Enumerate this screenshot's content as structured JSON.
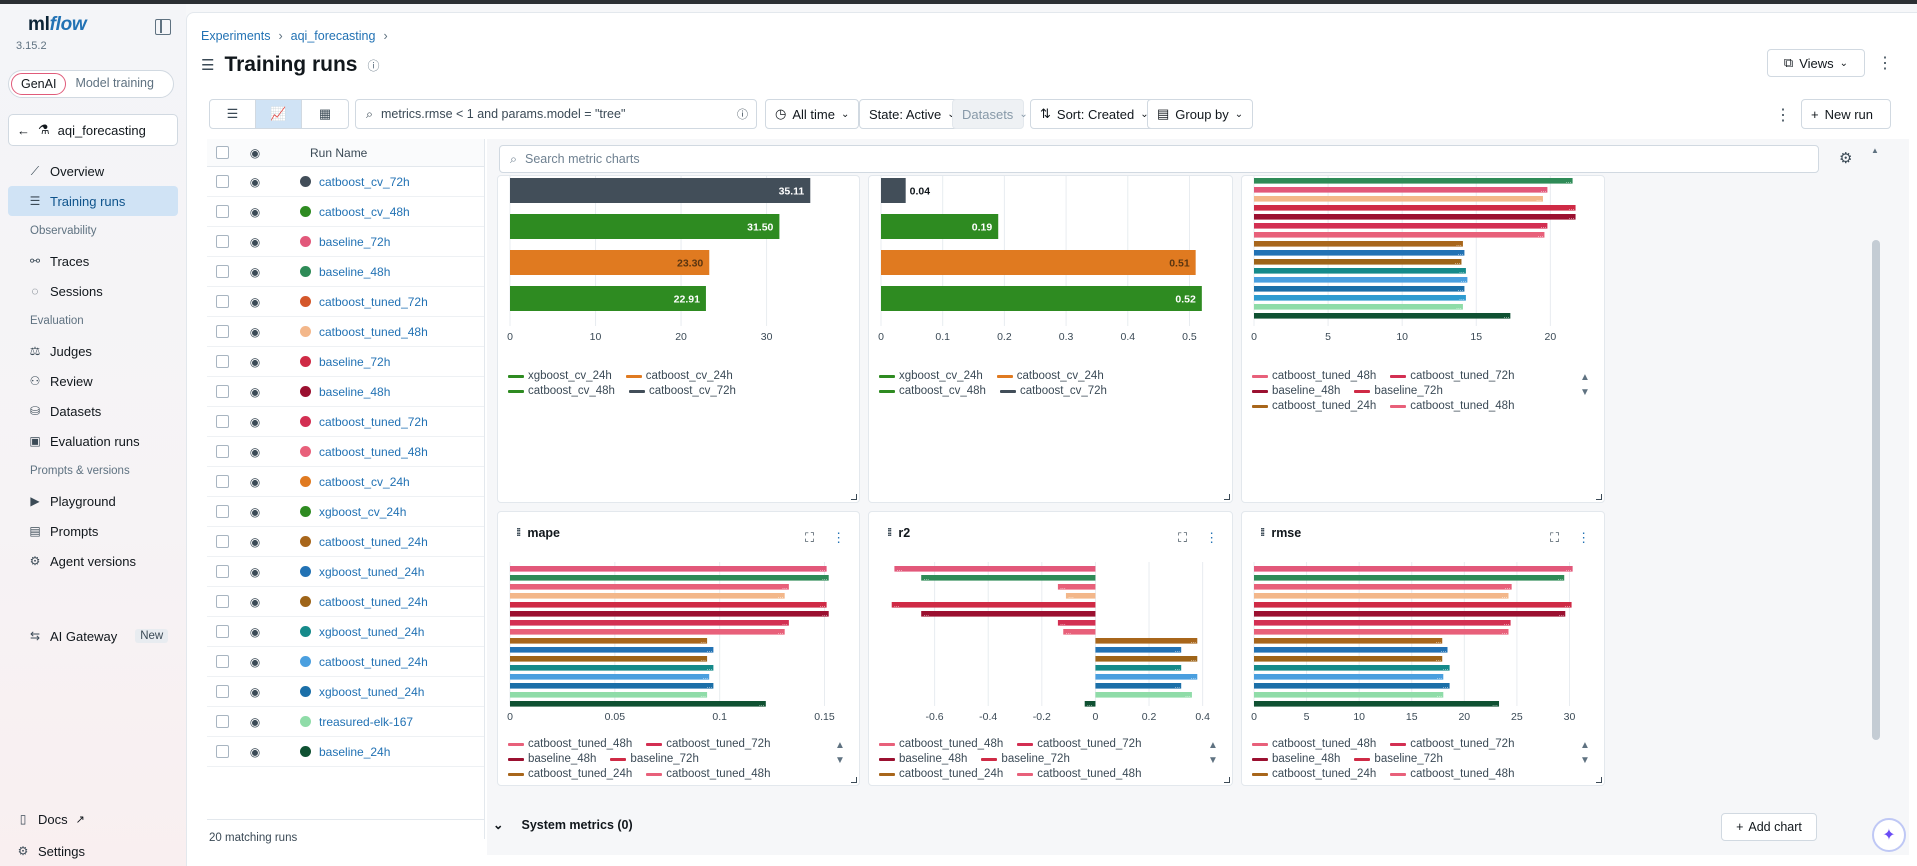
{
  "app": {
    "name": "mlflow",
    "version": "3.15.2"
  },
  "sidebar": {
    "modes": [
      "GenAI",
      "Model training"
    ],
    "experiment": "aqi_forecasting",
    "items": [
      {
        "label": "Overview",
        "icon": "chart-line-icon"
      },
      {
        "label": "Training runs",
        "icon": "list-icon",
        "active": true
      },
      {
        "section": "Observability"
      },
      {
        "label": "Traces",
        "icon": "traces-icon"
      },
      {
        "label": "Sessions",
        "icon": "chat-icon"
      },
      {
        "section": "Evaluation"
      },
      {
        "label": "Judges",
        "icon": "gavel-icon"
      },
      {
        "label": "Review",
        "icon": "users-icon"
      },
      {
        "label": "Datasets",
        "icon": "database-icon"
      },
      {
        "label": "Evaluation runs",
        "icon": "eval-icon"
      },
      {
        "section": "Prompts & versions"
      },
      {
        "label": "Playground",
        "icon": "play-icon"
      },
      {
        "label": "Prompts",
        "icon": "prompt-icon"
      },
      {
        "label": "Agent versions",
        "icon": "agent-icon"
      }
    ],
    "gateway": {
      "label": "AI Gateway",
      "badge": "New"
    },
    "docs": "Docs",
    "settings": "Settings"
  },
  "header": {
    "breadcrumbs": [
      "Experiments",
      "aqi_forecasting"
    ],
    "title": "Training runs",
    "views": "Views"
  },
  "toolbar": {
    "search_value": "metrics.rmse < 1 and params.model = \"tree\"",
    "time": "All time",
    "state": "State: Active",
    "datasets": "Datasets",
    "sort": "Sort: Created",
    "group": "Group by",
    "new_run": "New run"
  },
  "runs_table": {
    "column": "Run Name",
    "matching": "20 matching runs",
    "rows": [
      {
        "name": "catboost_cv_72h",
        "color": "#424e59"
      },
      {
        "name": "catboost_cv_48h",
        "color": "#2e8b21"
      },
      {
        "name": "baseline_72h",
        "color": "#e2587a"
      },
      {
        "name": "baseline_48h",
        "color": "#2e8b57"
      },
      {
        "name": "catboost_tuned_72h",
        "color": "#d4572a"
      },
      {
        "name": "catboost_tuned_48h",
        "color": "#f3b78a"
      },
      {
        "name": "baseline_72h",
        "color": "#cf2a45"
      },
      {
        "name": "baseline_48h",
        "color": "#9b1030"
      },
      {
        "name": "catboost_tuned_72h",
        "color": "#d32f52"
      },
      {
        "name": "catboost_tuned_48h",
        "color": "#e8607a"
      },
      {
        "name": "catboost_cv_24h",
        "color": "#e07a20"
      },
      {
        "name": "xgboost_cv_24h",
        "color": "#2e8b21"
      },
      {
        "name": "catboost_tuned_24h",
        "color": "#a8661b"
      },
      {
        "name": "xgboost_tuned_24h",
        "color": "#2272b4"
      },
      {
        "name": "catboost_tuned_24h",
        "color": "#9e6418"
      },
      {
        "name": "xgboost_tuned_24h",
        "color": "#158a8a"
      },
      {
        "name": "catboost_tuned_24h",
        "color": "#4a9fdf"
      },
      {
        "name": "xgboost_tuned_24h",
        "color": "#1b6fa8"
      },
      {
        "name": "treasured-elk-167",
        "color": "#8fdca8"
      },
      {
        "name": "baseline_24h",
        "color": "#0f5132"
      }
    ]
  },
  "charts_panel": {
    "search_placeholder": "Search metric charts",
    "system_metrics": "System metrics (0)",
    "add_chart": "Add chart"
  },
  "chart_data": [
    {
      "type": "bar",
      "title": "",
      "orientation": "horizontal",
      "categories": [
        "catboost_cv_72h",
        "catboost_cv_48h",
        "catboost_cv_24h",
        "xgboost_cv_24h"
      ],
      "values": [
        35.11,
        31.5,
        23.3,
        22.91
      ],
      "labels": [
        "35.11",
        "31.50",
        "23.30",
        "22.91"
      ],
      "colors": [
        "#424e59",
        "#2e8b21",
        "#e07a20",
        "#2e8b21"
      ],
      "xlim": [
        0,
        38
      ],
      "xticks": [
        0,
        10,
        20,
        30
      ],
      "legend": [
        {
          "name": "xgboost_cv_24h",
          "color": "#2e8b21"
        },
        {
          "name": "catboost_cv_24h",
          "color": "#e07a20"
        },
        {
          "name": "catboost_cv_48h",
          "color": "#2e8b21"
        },
        {
          "name": "catboost_cv_72h",
          "color": "#424e59"
        }
      ]
    },
    {
      "type": "bar",
      "title": "",
      "orientation": "horizontal",
      "categories": [
        "catboost_cv_72h",
        "catboost_cv_48h",
        "catboost_cv_24h",
        "xgboost_cv_24h"
      ],
      "values": [
        0.04,
        0.19,
        0.51,
        0.52
      ],
      "labels": [
        "0.04",
        "0.19",
        "0.51",
        "0.52"
      ],
      "colors": [
        "#424e59",
        "#2e8b21",
        "#e07a20",
        "#2e8b21"
      ],
      "xlim": [
        0,
        0.53
      ],
      "xticks": [
        0,
        0.1,
        0.2,
        0.3,
        0.4,
        0.5
      ],
      "legend": [
        {
          "name": "xgboost_cv_24h",
          "color": "#2e8b21"
        },
        {
          "name": "catboost_cv_24h",
          "color": "#e07a20"
        },
        {
          "name": "catboost_cv_48h",
          "color": "#2e8b21"
        },
        {
          "name": "catboost_cv_72h",
          "color": "#424e59"
        }
      ]
    },
    {
      "type": "bar",
      "title": "",
      "orientation": "horizontal",
      "values": [
        21.5,
        19.8,
        19.5,
        21.7,
        21.7,
        19.8,
        19.6,
        14.1,
        14.2,
        14.0,
        14.3,
        14.4,
        14.2,
        14.3,
        14.1,
        17.3
      ],
      "colors": [
        "#2e8b57",
        "#e2587a",
        "#f3b78a",
        "#cf2a45",
        "#9b1030",
        "#d32f52",
        "#e8607a",
        "#a8661b",
        "#2272b4",
        "#9e6418",
        "#158a8a",
        "#4a9fdf",
        "#1b6fa8",
        "#2e9bd0",
        "#8fdca8",
        "#0f5132"
      ],
      "xlim": [
        0,
        22
      ],
      "xticks": [
        0,
        5,
        10,
        15,
        20
      ],
      "legend": [
        {
          "name": "catboost_tuned_48h",
          "color": "#e8607a"
        },
        {
          "name": "catboost_tuned_72h",
          "color": "#d32f52"
        },
        {
          "name": "baseline_48h",
          "color": "#9b1030"
        },
        {
          "name": "baseline_72h",
          "color": "#cf2a45"
        },
        {
          "name": "catboost_tuned_24h",
          "color": "#a8661b"
        },
        {
          "name": "catboost_tuned_48h",
          "color": "#e8607a"
        }
      ]
    },
    {
      "type": "bar",
      "title": "mape",
      "orientation": "horizontal",
      "values": [
        0.151,
        0.152,
        0.133,
        0.131,
        0.151,
        0.152,
        0.133,
        0.131,
        0.094,
        0.097,
        0.094,
        0.097,
        0.095,
        0.097,
        0.094,
        0.122
      ],
      "colors": [
        "#e2587a",
        "#2e8b57",
        "#e8607a",
        "#f3b78a",
        "#cf2a45",
        "#9b1030",
        "#d32f52",
        "#e8607a",
        "#a8661b",
        "#2272b4",
        "#9e6418",
        "#158a8a",
        "#4a9fdf",
        "#1b6fa8",
        "#8fdca8",
        "#0f5132"
      ],
      "xlim": [
        0,
        0.155
      ],
      "xticks": [
        0,
        0.05,
        0.1,
        0.15
      ],
      "legend": [
        {
          "name": "catboost_tuned_48h",
          "color": "#e8607a"
        },
        {
          "name": "catboost_tuned_72h",
          "color": "#d32f52"
        },
        {
          "name": "baseline_48h",
          "color": "#9b1030"
        },
        {
          "name": "baseline_72h",
          "color": "#cf2a45"
        },
        {
          "name": "catboost_tuned_24h",
          "color": "#a8661b"
        },
        {
          "name": "catboost_tuned_48h",
          "color": "#e8607a"
        }
      ]
    },
    {
      "type": "bar",
      "title": "r2",
      "orientation": "horizontal",
      "values": [
        -0.75,
        -0.65,
        -0.14,
        -0.11,
        -0.76,
        -0.65,
        -0.14,
        -0.12,
        0.38,
        0.32,
        0.38,
        0.32,
        0.38,
        0.32,
        0.36,
        -0.04
      ],
      "colors": [
        "#e2587a",
        "#2e8b57",
        "#e8607a",
        "#f3b78a",
        "#cf2a45",
        "#9b1030",
        "#d32f52",
        "#e8607a",
        "#a8661b",
        "#2272b4",
        "#9e6418",
        "#158a8a",
        "#4a9fdf",
        "#1b6fa8",
        "#8fdca8",
        "#0f5132"
      ],
      "xlim": [
        -0.8,
        0.42
      ],
      "xticks": [
        -0.6,
        -0.4,
        -0.2,
        0,
        0.2,
        0.4
      ],
      "legend": [
        {
          "name": "catboost_tuned_48h",
          "color": "#e8607a"
        },
        {
          "name": "catboost_tuned_72h",
          "color": "#d32f52"
        },
        {
          "name": "baseline_48h",
          "color": "#9b1030"
        },
        {
          "name": "baseline_72h",
          "color": "#cf2a45"
        },
        {
          "name": "catboost_tuned_24h",
          "color": "#a8661b"
        },
        {
          "name": "catboost_tuned_48h",
          "color": "#e8607a"
        }
      ]
    },
    {
      "type": "bar",
      "title": "rmse",
      "orientation": "horizontal",
      "values": [
        30.3,
        29.5,
        24.5,
        24.2,
        30.2,
        29.6,
        24.4,
        24.2,
        17.9,
        18.4,
        17.9,
        18.6,
        18.0,
        18.6,
        18.0,
        23.3
      ],
      "colors": [
        "#e2587a",
        "#2e8b57",
        "#e8607a",
        "#f3b78a",
        "#cf2a45",
        "#9b1030",
        "#d32f52",
        "#e8607a",
        "#a8661b",
        "#2272b4",
        "#9e6418",
        "#158a8a",
        "#4a9fdf",
        "#1b6fa8",
        "#8fdca8",
        "#0f5132"
      ],
      "xlim": [
        0,
        31
      ],
      "xticks": [
        0,
        5,
        10,
        15,
        20,
        25,
        30
      ],
      "legend": [
        {
          "name": "catboost_tuned_48h",
          "color": "#e8607a"
        },
        {
          "name": "catboost_tuned_72h",
          "color": "#d32f52"
        },
        {
          "name": "baseline_48h",
          "color": "#9b1030"
        },
        {
          "name": "baseline_72h",
          "color": "#cf2a45"
        },
        {
          "name": "catboost_tuned_24h",
          "color": "#a8661b"
        },
        {
          "name": "catboost_tuned_48h",
          "color": "#e8607a"
        }
      ]
    }
  ]
}
